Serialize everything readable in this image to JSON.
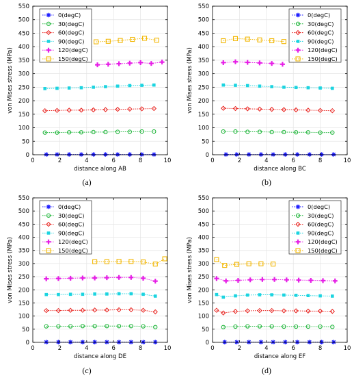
{
  "figure": {
    "panels": [
      "a",
      "b",
      "c",
      "d"
    ]
  },
  "colors": {
    "0(degC)": "#1a1aff",
    "30(degC)": "#1fb53a",
    "60(degC)": "#e8231f",
    "90(degC)": "#1cd4e0",
    "120(degC)": "#e61ee6",
    "150(degC)": "#f2b705",
    "axis": "#000000",
    "grid": "#e4e4e4"
  },
  "chart_data": [
    {
      "id": "a",
      "caption": "(a)",
      "type": "line",
      "xlabel": "distance along AB",
      "ylabel": "von Mises stress (MPa)",
      "xlim": [
        0,
        10
      ],
      "ylim": [
        0,
        550
      ],
      "xticks": [
        "0",
        "2",
        "4",
        "6",
        "8",
        "10"
      ],
      "yticks": [
        "0",
        "50",
        "100",
        "150",
        "200",
        "250",
        "300",
        "350",
        "400",
        "450",
        "500",
        "550"
      ],
      "grid": true,
      "legend_position": "top-left",
      "series": [
        {
          "name": "0(degC)",
          "marker": "star",
          "x": [
            1,
            1.8,
            2.7,
            3.6,
            4.5,
            5.4,
            6.3,
            7.2,
            8.1,
            9.0
          ],
          "y": [
            1,
            1,
            1,
            1,
            1,
            1,
            1,
            1,
            1,
            1
          ]
        },
        {
          "name": "30(degC)",
          "marker": "circle",
          "x": [
            0.9,
            1.8,
            2.7,
            3.6,
            4.5,
            5.4,
            6.3,
            7.2,
            8.1,
            9.0
          ],
          "y": [
            82,
            82,
            83,
            83,
            84,
            84,
            85,
            85,
            86,
            86
          ]
        },
        {
          "name": "60(degC)",
          "marker": "diamond",
          "x": [
            0.9,
            1.8,
            2.7,
            3.6,
            4.5,
            5.4,
            6.3,
            7.2,
            8.1,
            9.0
          ],
          "y": [
            163,
            164,
            165,
            165,
            166,
            167,
            168,
            169,
            170,
            171
          ]
        },
        {
          "name": "90(degC)",
          "marker": "square-filled",
          "x": [
            0.9,
            1.8,
            2.7,
            3.6,
            4.5,
            5.4,
            6.3,
            7.2,
            8.1,
            9.0
          ],
          "y": [
            245,
            246,
            247,
            248,
            250,
            252,
            254,
            256,
            257,
            258
          ]
        },
        {
          "name": "120(degC)",
          "marker": "plus-filled",
          "x": [
            4.8,
            5.6,
            6.4,
            7.2,
            8.0,
            8.8,
            9.6
          ],
          "y": [
            333,
            335,
            337,
            339,
            341,
            338,
            343
          ]
        },
        {
          "name": "150(degC)",
          "marker": "square-open",
          "x": [
            4.7,
            5.6,
            6.5,
            7.4,
            8.3,
            9.2
          ],
          "y": [
            418,
            420,
            423,
            427,
            431,
            424
          ]
        }
      ]
    },
    {
      "id": "b",
      "caption": "(b)",
      "type": "line",
      "xlabel": "distance along BC",
      "ylabel": "von Mises stress (MPa)",
      "xlim": [
        0,
        10
      ],
      "ylim": [
        0,
        550
      ],
      "xticks": [
        "0",
        "2",
        "4",
        "6",
        "8",
        "10"
      ],
      "yticks": [
        "0",
        "50",
        "100",
        "150",
        "200",
        "250",
        "300",
        "350",
        "400",
        "450",
        "500",
        "550"
      ],
      "grid": true,
      "legend_position": "top-right",
      "series": [
        {
          "name": "0(degC)",
          "marker": "star",
          "x": [
            1.0,
            1.8,
            2.7,
            3.6,
            4.5,
            5.4,
            6.3,
            7.2,
            8.1,
            9.0
          ],
          "y": [
            1,
            1,
            1,
            1,
            1,
            1,
            1,
            1,
            1,
            1
          ]
        },
        {
          "name": "30(degC)",
          "marker": "circle",
          "x": [
            0.8,
            1.7,
            2.6,
            3.5,
            4.4,
            5.3,
            6.2,
            7.1,
            8.0,
            8.9
          ],
          "y": [
            86,
            86,
            85,
            85,
            84,
            84,
            83,
            83,
            82,
            82
          ]
        },
        {
          "name": "60(degC)",
          "marker": "diamond",
          "x": [
            0.8,
            1.7,
            2.6,
            3.5,
            4.4,
            5.3,
            6.2,
            7.1,
            8.0,
            8.9
          ],
          "y": [
            172,
            171,
            170,
            169,
            168,
            167,
            166,
            165,
            164,
            163
          ]
        },
        {
          "name": "90(degC)",
          "marker": "square-filled",
          "x": [
            0.8,
            1.7,
            2.6,
            3.5,
            4.4,
            5.3,
            6.2,
            7.1,
            8.0,
            8.9
          ],
          "y": [
            258,
            257,
            256,
            254,
            252,
            250,
            249,
            248,
            247,
            246
          ]
        },
        {
          "name": "120(degC)",
          "marker": "plus-filled",
          "x": [
            0.8,
            1.7,
            2.6,
            3.5,
            4.4,
            5.2
          ],
          "y": [
            341,
            344,
            342,
            340,
            338,
            335
          ]
        },
        {
          "name": "150(degC)",
          "marker": "square-open",
          "x": [
            0.8,
            1.7,
            2.6,
            3.5,
            4.4,
            5.3
          ],
          "y": [
            422,
            430,
            428,
            425,
            422,
            419
          ]
        }
      ]
    },
    {
      "id": "c",
      "caption": "(c)",
      "type": "line",
      "xlabel": "distance along DE",
      "ylabel": "von Mises stress (MPa)",
      "xlim": [
        0,
        10
      ],
      "ylim": [
        0,
        550
      ],
      "xticks": [
        "0",
        "2",
        "4",
        "6",
        "8",
        "10"
      ],
      "yticks": [
        "0",
        "50",
        "100",
        "150",
        "200",
        "250",
        "300",
        "350",
        "400",
        "450",
        "500",
        "550"
      ],
      "grid": true,
      "legend_position": "top-left",
      "series": [
        {
          "name": "0(degC)",
          "marker": "star",
          "x": [
            1.0,
            1.9,
            2.8,
            3.7,
            4.6,
            5.5,
            6.4,
            7.3,
            8.2,
            9.1
          ],
          "y": [
            1,
            1,
            1,
            1,
            1,
            1,
            1,
            1,
            1,
            1
          ]
        },
        {
          "name": "30(degC)",
          "marker": "circle",
          "x": [
            1.0,
            1.9,
            2.8,
            3.7,
            4.6,
            5.5,
            6.4,
            7.3,
            8.2,
            9.1
          ],
          "y": [
            61,
            61,
            61,
            62,
            62,
            62,
            62,
            62,
            61,
            58
          ]
        },
        {
          "name": "60(degC)",
          "marker": "diamond",
          "x": [
            1.0,
            1.9,
            2.8,
            3.7,
            4.6,
            5.5,
            6.4,
            7.3,
            8.2,
            9.1
          ],
          "y": [
            121,
            121,
            122,
            122,
            123,
            123,
            124,
            124,
            122,
            116
          ]
        },
        {
          "name": "90(degC)",
          "marker": "square-filled",
          "x": [
            1.0,
            1.9,
            2.8,
            3.7,
            4.6,
            5.5,
            6.4,
            7.3,
            8.2,
            9.1
          ],
          "y": [
            182,
            182,
            183,
            183,
            184,
            184,
            185,
            185,
            183,
            176
          ]
        },
        {
          "name": "120(degC)",
          "marker": "plus-filled",
          "x": [
            1.0,
            1.9,
            2.8,
            3.7,
            4.6,
            5.5,
            6.4,
            7.3,
            8.2,
            9.1
          ],
          "y": [
            242,
            243,
            244,
            245,
            245,
            246,
            247,
            247,
            244,
            233
          ]
        },
        {
          "name": "150(degC)",
          "marker": "square-open",
          "x": [
            4.6,
            5.5,
            6.4,
            7.3,
            8.2,
            9.1,
            9.8
          ],
          "y": [
            307,
            307,
            308,
            308,
            306,
            298,
            318
          ]
        }
      ]
    },
    {
      "id": "d",
      "caption": "(d)",
      "type": "line",
      "xlabel": "distance along EF",
      "ylabel": "von Mises stress (MPa)",
      "xlim": [
        0,
        10
      ],
      "ylim": [
        0,
        550
      ],
      "xticks": [
        "0",
        "2",
        "4",
        "6",
        "8",
        "10"
      ],
      "yticks": [
        "0",
        "50",
        "100",
        "150",
        "200",
        "250",
        "300",
        "350",
        "400",
        "450",
        "500",
        "550"
      ],
      "grid": true,
      "legend_position": "top-right",
      "series": [
        {
          "name": "0(degC)",
          "marker": "star",
          "x": [
            0.9,
            1.8,
            2.7,
            3.6,
            4.5,
            5.4,
            6.3,
            7.2,
            8.1,
            9.0
          ],
          "y": [
            1,
            1,
            1,
            1,
            1,
            1,
            1,
            1,
            1,
            1
          ]
        },
        {
          "name": "30(degC)",
          "marker": "circle",
          "x": [
            0.8,
            1.7,
            2.6,
            3.5,
            4.4,
            5.3,
            6.2,
            7.1,
            8.0,
            8.9
          ],
          "y": [
            58,
            60,
            61,
            61,
            61,
            60,
            60,
            60,
            60,
            59
          ]
        },
        {
          "name": "60(degC)",
          "marker": "diamond",
          "x": [
            0.3,
            0.8,
            1.7,
            2.6,
            3.5,
            4.4,
            5.3,
            6.2,
            7.1,
            8.0,
            8.9
          ],
          "y": [
            122,
            112,
            118,
            120,
            121,
            121,
            120,
            120,
            119,
            119,
            118
          ]
        },
        {
          "name": "90(degC)",
          "marker": "square-filled",
          "x": [
            0.3,
            0.8,
            1.7,
            2.6,
            3.5,
            4.4,
            5.3,
            6.2,
            7.1,
            8.0,
            8.9
          ],
          "y": [
            182,
            172,
            177,
            180,
            181,
            181,
            180,
            179,
            178,
            177,
            176
          ]
        },
        {
          "name": "120(degC)",
          "marker": "plus-filled",
          "x": [
            0.3,
            1.0,
            1.9,
            2.8,
            3.7,
            4.6,
            5.5,
            6.4,
            7.3,
            8.2,
            9.1
          ],
          "y": [
            243,
            234,
            236,
            238,
            239,
            239,
            238,
            237,
            236,
            235,
            234
          ]
        },
        {
          "name": "150(degC)",
          "marker": "square-open",
          "x": [
            0.3,
            0.9,
            1.8,
            2.7,
            3.6,
            4.5
          ],
          "y": [
            315,
            293,
            297,
            299,
            299,
            298
          ]
        }
      ]
    }
  ]
}
